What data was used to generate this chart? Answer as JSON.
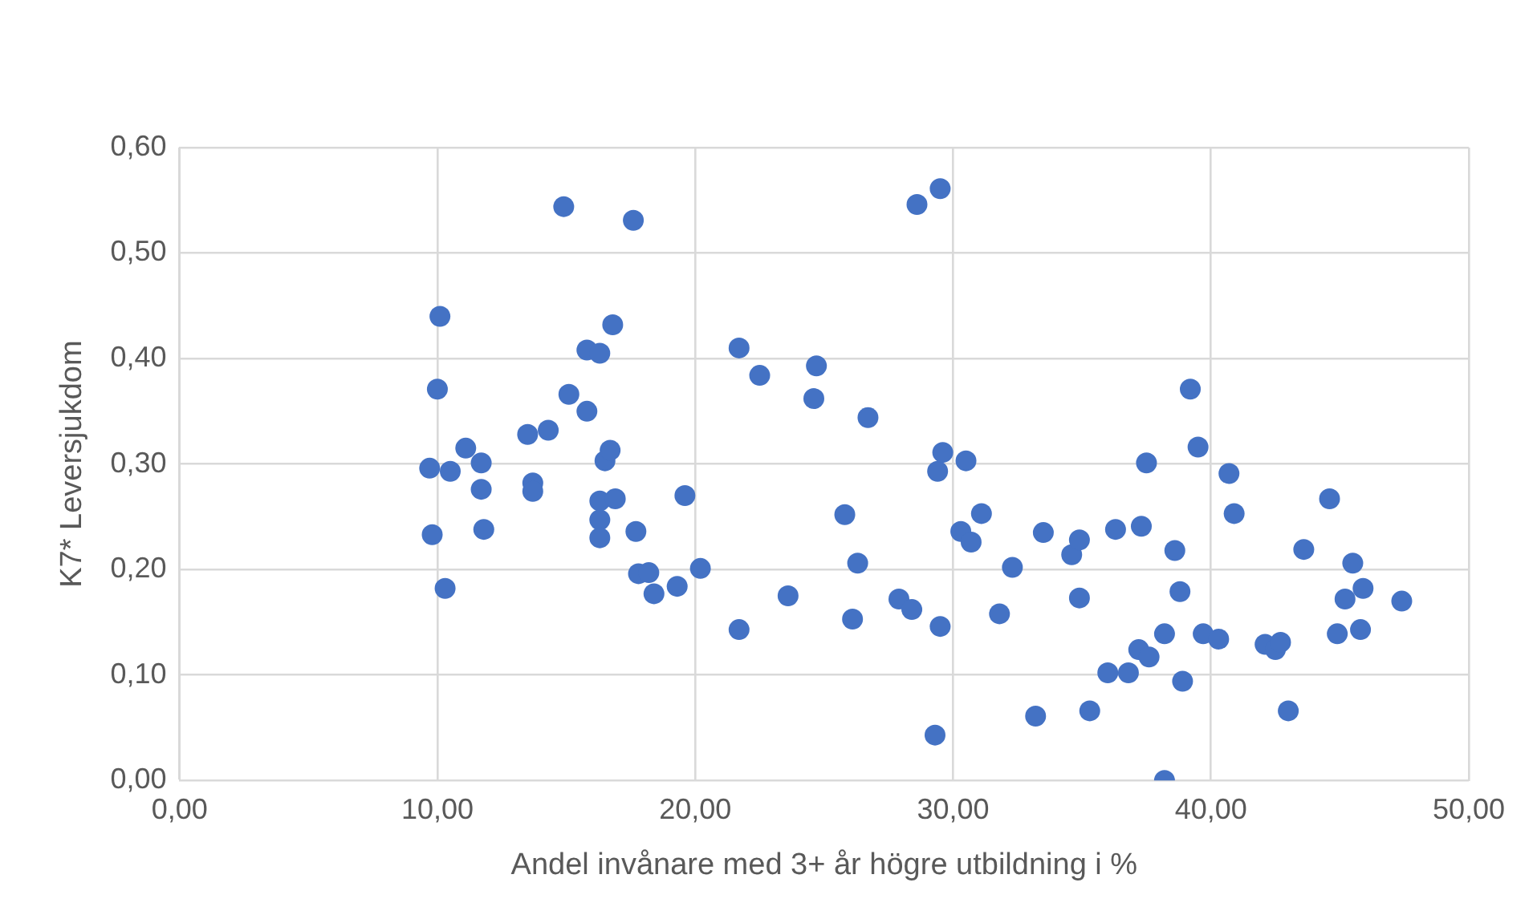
{
  "chart_data": {
    "type": "scatter",
    "xlabel": "Andel invånare med 3+ år högre utbildning i %",
    "ylabel": "K7* Leversjukdom",
    "xlim": [
      0,
      50
    ],
    "xticks": [
      {
        "value": 0,
        "label": "0,00"
      },
      {
        "value": 10,
        "label": "10,00"
      },
      {
        "value": 20,
        "label": "20,00"
      },
      {
        "value": 30,
        "label": "30,00"
      },
      {
        "value": 40,
        "label": "40,00"
      },
      {
        "value": 50,
        "label": "50,00"
      }
    ],
    "ylim": [
      0,
      0.6
    ],
    "yticks": [
      {
        "value": 0,
        "label": "0,00"
      },
      {
        "value": 0.1,
        "label": "0,10"
      },
      {
        "value": 0.2,
        "label": "0,20"
      },
      {
        "value": 0.3,
        "label": "0,30"
      },
      {
        "value": 0.4,
        "label": "0,40"
      },
      {
        "value": 0.5,
        "label": "0,50"
      },
      {
        "value": 0.6,
        "label": "0,60"
      }
    ],
    "grid": true,
    "marker": "circle",
    "series": [
      {
        "color": "#4472c4",
        "x": [
          9.7,
          9.8,
          10.0,
          10.1,
          10.3,
          10.5,
          11.1,
          11.7,
          11.7,
          11.8,
          13.5,
          13.7,
          13.7,
          14.3,
          14.9,
          15.1,
          15.8,
          15.8,
          16.3,
          16.3,
          16.3,
          16.3,
          16.5,
          16.8,
          16.7,
          16.9,
          17.6,
          17.7,
          17.8,
          18.2,
          18.4,
          19.3,
          19.6,
          20.2,
          21.7,
          21.7,
          22.5,
          23.6,
          24.6,
          24.7,
          25.8,
          26.1,
          26.3,
          26.7,
          27.9,
          28.4,
          28.6,
          29.3,
          29.4,
          29.5,
          29.5,
          29.6,
          30.3,
          30.5,
          30.7,
          31.1,
          31.8,
          32.3,
          33.2,
          33.5,
          34.6,
          34.9,
          34.9,
          35.3,
          36.0,
          36.3,
          36.8,
          37.2,
          37.3,
          37.5,
          37.6,
          38.2,
          38.2,
          38.6,
          38.9,
          38.8,
          39.2,
          39.5,
          39.7,
          40.3,
          40.7,
          40.9,
          42.1,
          42.5,
          42.7,
          43.0,
          43.6,
          44.6,
          44.9,
          45.2,
          45.5,
          45.8,
          45.9,
          47.4
        ],
        "values": [
          0.296,
          0.233,
          0.371,
          0.44,
          0.182,
          0.293,
          0.315,
          0.301,
          0.276,
          0.238,
          0.328,
          0.282,
          0.274,
          0.332,
          0.544,
          0.366,
          0.408,
          0.35,
          0.405,
          0.265,
          0.247,
          0.23,
          0.303,
          0.432,
          0.313,
          0.267,
          0.531,
          0.236,
          0.196,
          0.197,
          0.177,
          0.184,
          0.27,
          0.201,
          0.143,
          0.41,
          0.384,
          0.175,
          0.362,
          0.393,
          0.252,
          0.153,
          0.206,
          0.344,
          0.172,
          0.162,
          0.546,
          0.043,
          0.293,
          0.561,
          0.146,
          0.311,
          0.236,
          0.303,
          0.226,
          0.253,
          0.158,
          0.202,
          0.061,
          0.235,
          0.214,
          0.228,
          0.173,
          0.066,
          0.102,
          0.238,
          0.102,
          0.124,
          0.241,
          0.301,
          0.117,
          0.139,
          0,
          0.218,
          0.094,
          0.179,
          0.371,
          0.316,
          0.139,
          0.134,
          0.291,
          0.253,
          0.129,
          0.124,
          0.131,
          0.066,
          0.219,
          0.267,
          0.139,
          0.172,
          0.206,
          0.143,
          0.182,
          0.17
        ]
      }
    ]
  }
}
